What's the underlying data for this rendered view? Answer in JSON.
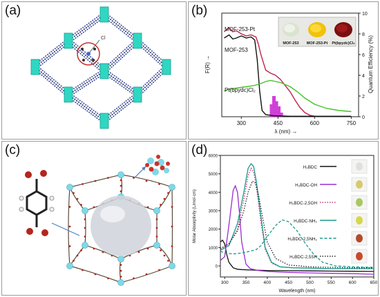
{
  "panels": {
    "a": {
      "label": "(a)",
      "atom_label": "Cl"
    },
    "b": {
      "label": "(b)"
    },
    "c": {
      "label": "(c)"
    },
    "d": {
      "label": "(d)"
    }
  },
  "chart_b": {
    "type": "line",
    "xlabel": "λ (nm) →",
    "ylabel_left": "F(R) →",
    "ylabel_right": "Quantum Efficiency (%)",
    "x_ticks": [
      "300",
      "450",
      "600",
      "750"
    ],
    "y_right_ticks": [
      "0",
      "2",
      "4",
      "6",
      "8",
      "10"
    ],
    "series_labels": [
      "MOF-253-Pt",
      "MOF-253",
      "Pt(bpydc)Cl₂"
    ],
    "photo_labels": [
      "MOF-253",
      "MOF-253-Pt",
      "Pt(bpydc)Cl₂"
    ],
    "colors": {
      "mof253pt": "#c0204a",
      "mof253": "#111111",
      "ptcl2": "#44c024",
      "bars": "#d040d8"
    }
  },
  "chart_d": {
    "type": "line",
    "xlabel": "Wavelength (nm)",
    "ylabel": "Molar Absorptivity (L/mol·cm)",
    "x_ticks": [
      "300",
      "350",
      "400",
      "450",
      "500",
      "550",
      "600",
      "650"
    ],
    "y_ticks": [
      "0",
      "1000",
      "2000",
      "3000",
      "4000",
      "5000",
      "6000"
    ],
    "legend": [
      {
        "name": "H₂BDC",
        "color": "#111111",
        "style": "solid"
      },
      {
        "name": "H₂BDC-OH",
        "color": "#9a2cd0",
        "style": "solid"
      },
      {
        "name": "H₂BDC-2,5OH",
        "color": "#c03070",
        "style": "dot"
      },
      {
        "name": "H₂BDC-NH₂",
        "color": "#179a8c",
        "style": "solid"
      },
      {
        "name": "H₂BDC-2,5NH₂",
        "color": "#179a8c",
        "style": "dash"
      },
      {
        "name": "H₂BDC-2,5SH",
        "color": "#222222",
        "style": "dot"
      }
    ]
  },
  "chart_data": [
    {
      "type": "line",
      "xlabel": "λ (nm) →",
      "ylabel": "F(R) →",
      "xlim": [
        220,
        780
      ],
      "series": [
        {
          "name": "MOF-253-Pt",
          "x": [
            230,
            250,
            265,
            280,
            300,
            320,
            340,
            360,
            370,
            380,
            400,
            420,
            440,
            460,
            480,
            500,
            520,
            540,
            560,
            580,
            600
          ],
          "y": [
            8.2,
            8.6,
            8.2,
            8.3,
            8.0,
            7.8,
            7.9,
            7.7,
            7.0,
            6.0,
            4.5,
            4.2,
            4.0,
            3.6,
            3.0,
            2.4,
            1.6,
            0.9,
            0.4,
            0.15,
            0.05
          ]
        },
        {
          "name": "MOF-253",
          "x": [
            230,
            250,
            265,
            280,
            300,
            320,
            340,
            355,
            365,
            375,
            385,
            400,
            430,
            500,
            600,
            750
          ],
          "y": [
            7.6,
            7.9,
            7.5,
            7.6,
            7.8,
            7.6,
            7.7,
            7.4,
            5.5,
            2.5,
            0.6,
            0.2,
            0.1,
            0.05,
            0.05,
            0.05
          ]
        },
        {
          "name": "Pt(bpydc)Cl₂",
          "x": [
            230,
            260,
            290,
            320,
            350,
            380,
            400,
            420,
            440,
            460,
            480,
            500,
            530,
            560,
            600,
            650,
            700,
            750
          ],
          "y": [
            2.5,
            2.7,
            2.8,
            2.9,
            3.0,
            3.2,
            3.4,
            3.5,
            3.4,
            3.3,
            3.1,
            2.9,
            2.4,
            1.8,
            1.2,
            0.8,
            0.6,
            0.5
          ]
        }
      ],
      "bars": {
        "x": [
          425,
          435,
          445,
          455,
          465
        ],
        "values": [
          1.2,
          2.0,
          1.5,
          1.0,
          0.4
        ]
      }
    },
    {
      "type": "line",
      "xlabel": "Wavelength (nm)",
      "ylabel": "Molar Absorptivity (L/mol·cm)",
      "xlim": [
        290,
        650
      ],
      "ylim": [
        -600,
        6000
      ],
      "series": [
        {
          "name": "H₂BDC",
          "x": [
            290,
            295,
            300,
            305,
            310,
            320,
            330,
            340,
            360,
            400,
            450,
            500,
            550,
            600,
            650
          ],
          "y": [
            1300,
            1400,
            1200,
            600,
            200,
            -100,
            -180,
            -200,
            -220,
            -250,
            -260,
            -270,
            -280,
            -290,
            -300
          ]
        },
        {
          "name": "H₂BDC-OH",
          "x": [
            290,
            300,
            310,
            320,
            325,
            330,
            335,
            340,
            350,
            360,
            380,
            400,
            450,
            500,
            550,
            600,
            650
          ],
          "y": [
            300,
            500,
            2200,
            4100,
            4350,
            4000,
            2800,
            1300,
            100,
            -150,
            -250,
            -300,
            -350,
            -380,
            -400,
            -420,
            -450
          ]
        },
        {
          "name": "H₂BDC-2,5OH",
          "x": [
            290,
            310,
            330,
            345,
            355,
            362,
            368,
            375,
            385,
            395,
            410,
            430,
            460,
            500,
            550,
            600,
            650
          ],
          "y": [
            900,
            1200,
            2000,
            3600,
            4900,
            5300,
            5100,
            4200,
            2400,
            900,
            150,
            -50,
            -100,
            -120,
            -150,
            -150,
            -150
          ]
        },
        {
          "name": "H₂BDC-NH₂",
          "x": [
            290,
            310,
            330,
            345,
            355,
            362,
            368,
            375,
            385,
            395,
            410,
            430,
            460,
            500,
            550,
            600,
            650
          ],
          "y": [
            850,
            1100,
            2300,
            4000,
            5300,
            5550,
            5400,
            4500,
            2700,
            1000,
            200,
            -50,
            -100,
            -120,
            -150,
            -150,
            -150
          ]
        },
        {
          "name": "H₂BDC-2,5NH₂",
          "x": [
            290,
            300,
            320,
            340,
            360,
            375,
            385,
            400,
            420,
            435,
            450,
            470,
            490,
            510,
            530,
            560,
            600,
            650
          ],
          "y": [
            800,
            700,
            650,
            700,
            800,
            900,
            1100,
            1600,
            2200,
            2500,
            2400,
            1900,
            1200,
            600,
            200,
            0,
            -50,
            -80
          ]
        },
        {
          "name": "H₂BDC-2,5SH",
          "x": [
            290,
            310,
            330,
            345,
            355,
            365,
            372,
            380,
            390,
            400,
            420,
            450,
            500,
            550,
            600,
            650
          ],
          "y": [
            950,
            1200,
            1900,
            3000,
            4000,
            4600,
            4500,
            3800,
            2500,
            1300,
            400,
            50,
            -50,
            -80,
            -100,
            -100
          ]
        }
      ]
    }
  ]
}
